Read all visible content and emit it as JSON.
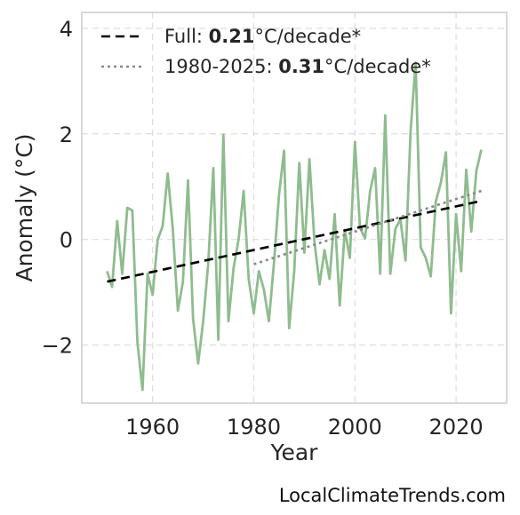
{
  "chart_data": {
    "type": "line",
    "xlabel": "Year",
    "ylabel": "Anomaly (°C)",
    "xlim": [
      1946,
      2030
    ],
    "ylim": [
      -3.1,
      4.3
    ],
    "xticks": [
      1960,
      1980,
      2000,
      2020
    ],
    "yticks": [
      -2,
      0,
      2,
      4
    ],
    "ytick_labels": [
      "−2",
      "0",
      "2",
      "4"
    ],
    "grid": true,
    "legend_position": "top-left",
    "series": [
      {
        "style": "solid",
        "color": "#8fbc8f",
        "x": [
          1951,
          1952,
          1953,
          1954,
          1955,
          1956,
          1957,
          1958,
          1959,
          1960,
          1961,
          1962,
          1963,
          1964,
          1965,
          1966,
          1967,
          1968,
          1969,
          1970,
          1971,
          1972,
          1973,
          1974,
          1975,
          1976,
          1977,
          1978,
          1979,
          1980,
          1981,
          1982,
          1983,
          1984,
          1985,
          1986,
          1987,
          1988,
          1989,
          1990,
          1991,
          1992,
          1993,
          1994,
          1995,
          1996,
          1997,
          1998,
          1999,
          2000,
          2001,
          2002,
          2003,
          2004,
          2005,
          2006,
          2007,
          2008,
          2009,
          2010,
          2011,
          2012,
          2013,
          2014,
          2015,
          2016,
          2017,
          2018,
          2019,
          2020,
          2021,
          2022,
          2023,
          2024,
          2025
        ],
        "values": [
          -0.6,
          -0.9,
          0.35,
          -0.65,
          0.6,
          0.55,
          -1.95,
          -2.85,
          -0.65,
          -1.05,
          0.0,
          0.25,
          1.25,
          0.2,
          -1.35,
          -0.8,
          1.12,
          -1.5,
          -2.35,
          -1.55,
          -0.45,
          1.35,
          -1.9,
          1.98,
          -1.55,
          -0.55,
          0.0,
          0.92,
          -0.75,
          -1.4,
          -0.6,
          -0.95,
          -1.55,
          -0.45,
          0.85,
          1.68,
          -1.68,
          -0.6,
          1.45,
          -0.25,
          1.52,
          -0.05,
          -0.85,
          -0.2,
          -0.75,
          0.48,
          -1.25,
          0.18,
          -0.35,
          1.85,
          0.22,
          0.02,
          0.92,
          1.35,
          -0.65,
          2.35,
          -0.65,
          0.2,
          0.38,
          -0.4,
          2.05,
          3.35,
          -0.15,
          -0.35,
          -0.7,
          0.72,
          1.08,
          1.65,
          -1.4,
          0.48,
          -0.6,
          1.32,
          0.15,
          1.3,
          1.7
        ]
      },
      {
        "style": "dashed",
        "color": "#000000",
        "x": [
          1951,
          2025
        ],
        "values": [
          -0.8,
          0.73
        ]
      },
      {
        "style": "dotted",
        "color": "#888888",
        "x": [
          1980,
          2025
        ],
        "values": [
          -0.47,
          0.92
        ]
      }
    ],
    "legend": [
      {
        "prefix": "Full: ",
        "bold": "0.21",
        "suffix": "°C/decade*",
        "style": "dashed",
        "color": "#000000"
      },
      {
        "prefix": "1980-2025: ",
        "bold": "0.31",
        "suffix": "°C/decade*",
        "style": "dotted",
        "color": "#888888"
      }
    ]
  },
  "credit": "LocalClimateTrends.com"
}
